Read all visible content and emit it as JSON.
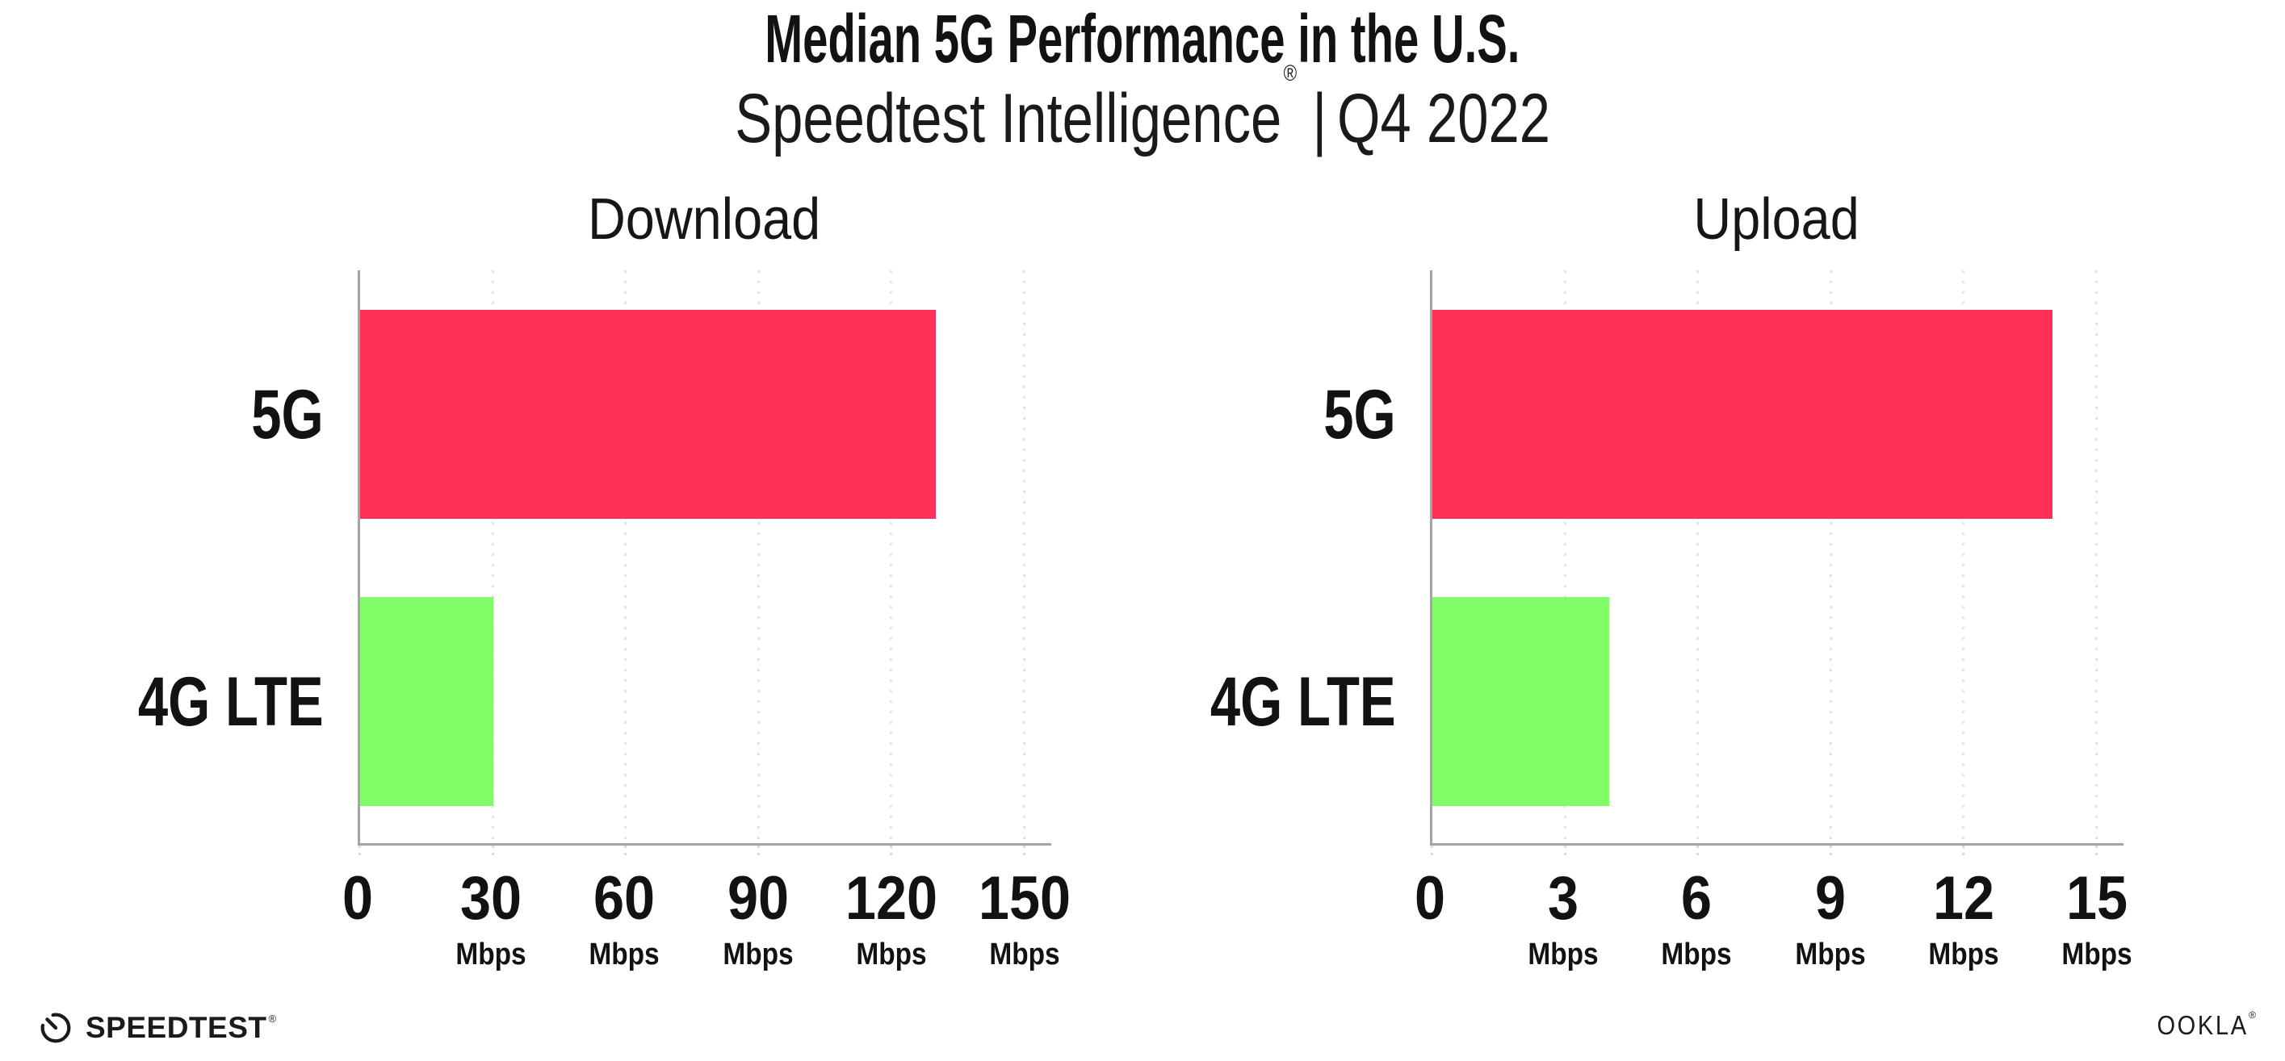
{
  "header": {
    "title": "Median 5G Performance in the U.S.",
    "subtitle": {
      "brand": "Speedtest Intelligence",
      "reg": "®",
      "separator": "|",
      "period": "Q4 2022"
    }
  },
  "chart_data": [
    {
      "type": "bar",
      "orientation": "horizontal",
      "title": "Download",
      "categories": [
        "5G",
        "4G LTE"
      ],
      "values": [
        130,
        30
      ],
      "value_unit": "Mbps",
      "xlim": [
        0,
        156
      ],
      "xticks": [
        {
          "value": 0,
          "label": "0",
          "unit": ""
        },
        {
          "value": 30,
          "label": "30",
          "unit": "Mbps"
        },
        {
          "value": 60,
          "label": "60",
          "unit": "Mbps"
        },
        {
          "value": 90,
          "label": "90",
          "unit": "Mbps"
        },
        {
          "value": 120,
          "label": "120",
          "unit": "Mbps"
        },
        {
          "value": 150,
          "label": "150",
          "unit": "Mbps"
        }
      ],
      "bar_colors": [
        "#FF2F56",
        "#80FC66"
      ],
      "grid": "vertical-dotted",
      "legend": "none"
    },
    {
      "type": "bar",
      "orientation": "horizontal",
      "title": "Upload",
      "categories": [
        "5G",
        "4G LTE"
      ],
      "values": [
        14,
        4
      ],
      "value_unit": "Mbps",
      "xlim": [
        0,
        15.6
      ],
      "xticks": [
        {
          "value": 0,
          "label": "0",
          "unit": ""
        },
        {
          "value": 3,
          "label": "3",
          "unit": "Mbps"
        },
        {
          "value": 6,
          "label": "6",
          "unit": "Mbps"
        },
        {
          "value": 9,
          "label": "9",
          "unit": "Mbps"
        },
        {
          "value": 12,
          "label": "12",
          "unit": "Mbps"
        },
        {
          "value": 15,
          "label": "15",
          "unit": "Mbps"
        }
      ],
      "bar_colors": [
        "#FF2F56",
        "#80FC66"
      ],
      "grid": "vertical-dotted",
      "legend": "none"
    }
  ],
  "colors": {
    "bar_5g": "#FF2F56",
    "bar_4g_lte": "#80FC66",
    "axis": "#a5a5a5",
    "gridline": "#e3e3ea",
    "text": "#121212"
  },
  "footer": {
    "speedtest_wordmark": "SPEEDTEST",
    "speedtest_reg": "®",
    "ookla_wordmark": "OOKLA",
    "ookla_reg": "®"
  }
}
